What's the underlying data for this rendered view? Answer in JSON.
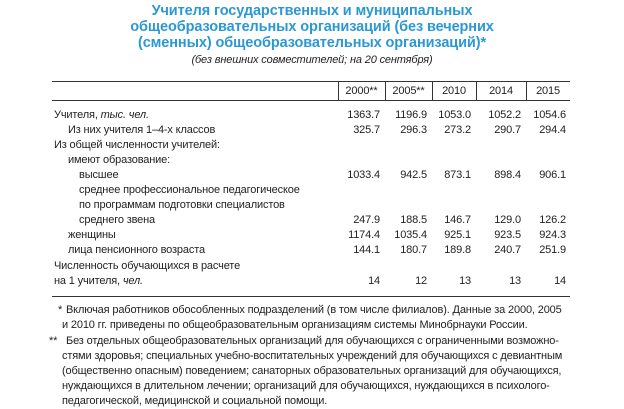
{
  "header": {
    "title": [
      "Учителя государственных и муниципальных",
      "общеобразовательных организаций (без вечерних",
      "(сменных) общеобразовательных организаций)*"
    ],
    "subtitle": "(без внешних совместителей; на 20 сентября)"
  },
  "table": {
    "columns": [
      "2000**",
      "2005**",
      "2010",
      "2014",
      "2015"
    ],
    "rows": [
      {
        "label": [
          "Учителя,"
        ],
        "unit": "тыс. чел.",
        "indent": 0,
        "values": [
          "1363.7",
          "1196.9",
          "1053.0",
          "1052.2",
          "1054.6"
        ]
      },
      {
        "label": [
          "Из них учителя 1–4-х классов"
        ],
        "indent": 1,
        "values": [
          "325.7",
          "296.3",
          "273.2",
          "290.7",
          "294.4"
        ]
      },
      {
        "label": [
          "Из общей численности учителей:"
        ],
        "indent": 0
      },
      {
        "label": [
          "имеют образование:"
        ],
        "indent": 1
      },
      {
        "label": [
          "высшее"
        ],
        "indent": 2,
        "values": [
          "1033.4",
          "942.5",
          "873.1",
          "898.4",
          "906.1"
        ]
      },
      {
        "label": [
          "среднее профессиональное педагогическое",
          "по программам подготовки специалистов",
          "среднего звена"
        ],
        "indent": 2,
        "values": [
          "247.9",
          "188.5",
          "146.7",
          "129.0",
          "126.2"
        ]
      },
      {
        "label": [
          "женщины"
        ],
        "indent": 1,
        "values": [
          "1174.4",
          "1035.4",
          "925.1",
          "923.5",
          "924.3"
        ]
      },
      {
        "label": [
          "лица пенсионного возраста"
        ],
        "indent": 1,
        "values": [
          "144.1",
          "180.7",
          "189.8",
          "240.7",
          "251.9"
        ]
      },
      {
        "label": [
          "Численность обучающихся в расчете",
          "на 1 учителя,"
        ],
        "unit": "чел.",
        "indent": 0,
        "values": [
          "14",
          "12",
          "13",
          "13",
          "14"
        ]
      }
    ]
  },
  "footnotes": [
    {
      "marker": "*",
      "lines": [
        "Включая работников обособленных подразделений (в том числе филиалов). Данные за 2000, 2005",
        "и 2010 гг. приведены по общеобразовательным организациям системы Минобрнауки России."
      ]
    },
    {
      "marker": "**",
      "lines": [
        "Без отдельных общеобразовательных организаций для обучающихся с ограниченными возможно-",
        "стями здоровья; специальных учебно-воспитательных учреждений для обучающихся с девиантным",
        "(общественно опасным) поведением; санаторных образовательных организаций для обучающихся,",
        "нуждающихся в длительном лечении; организаций для обучающихся, нуждающихся в психолого-",
        "педагогической, медицинской и социальной помощи."
      ]
    }
  ]
}
